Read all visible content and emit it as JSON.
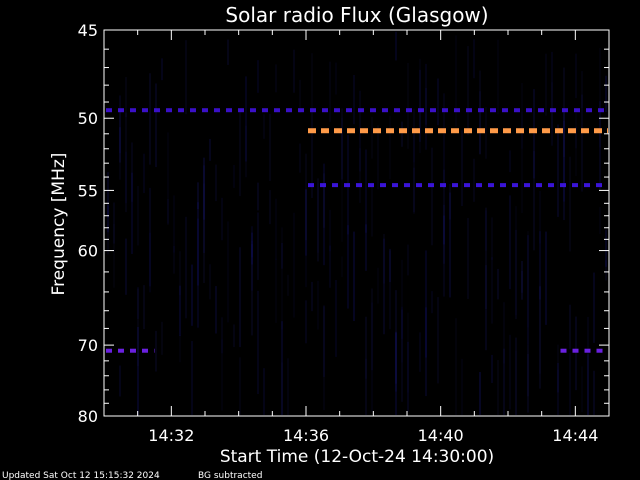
{
  "chart_data": {
    "type": "heatmap",
    "title": "Solar radio Flux (Glasgow)",
    "xlabel": "Start Time (12-Oct-24 14:30:00)",
    "ylabel": "Frequency [MHz]",
    "xlim": [
      "14:30:00",
      "14:45:00"
    ],
    "ylim": [
      45,
      80
    ],
    "y_scale": "reciprocal",
    "x_ticks": [
      "14:32",
      "14:36",
      "14:40",
      "14:44"
    ],
    "y_ticks": [
      "45",
      "50",
      "55",
      "60",
      "70",
      "80"
    ],
    "background_color": "#000000",
    "features": [
      {
        "frequency_mhz": 49.5,
        "time_start": "14:30:00",
        "time_end": "14:45:00",
        "level": "low",
        "color": "#3a10c8"
      },
      {
        "frequency_mhz": 50.8,
        "time_start": "14:36:00",
        "time_end": "14:45:00",
        "level": "high",
        "color": "#ff9a48"
      },
      {
        "frequency_mhz": 54.6,
        "time_start": "14:36:00",
        "time_end": "14:45:00",
        "level": "low",
        "color": "#3a14d8"
      },
      {
        "frequency_mhz": 70.7,
        "time_start": "14:30:00",
        "time_end": "14:31:30",
        "level": "low",
        "color": "#6a20e0"
      },
      {
        "frequency_mhz": 70.7,
        "time_start": "14:43:30",
        "time_end": "14:44:50",
        "level": "low",
        "color": "#6a20e0"
      }
    ],
    "grid": false
  },
  "footer": {
    "updated": "Updated Sat Oct 12 15:15:32 2024",
    "note": "BG subtracted"
  }
}
